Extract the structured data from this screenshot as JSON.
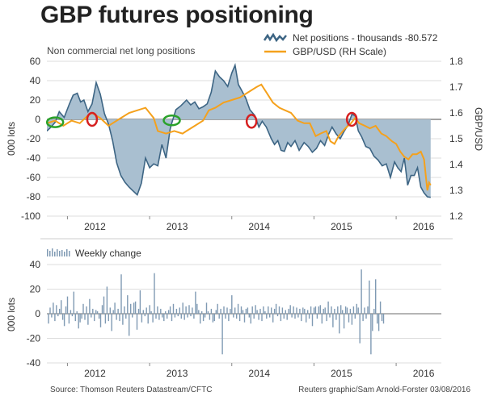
{
  "title": "GBP futures positioning",
  "footer": {
    "source": "Source: Thomson Reuters Datastream/CFTC",
    "credit": "Reuters graphic/Sam Arnold-Forster 03/08/2016"
  },
  "colors": {
    "net_area": "#a9bfd0",
    "net_line": "#3d6584",
    "gbp_line": "#f5a11c",
    "bars": "#7f9ab3",
    "zero_line": "#6b6b6b",
    "grid": "#dddddd",
    "green_marker": "#2aa22a",
    "red_marker": "#d62020",
    "divider": "#cccccc"
  },
  "chart_data": [
    {
      "type": "area",
      "subtitle": "Non commercial net long positions",
      "ylabel_left": "000 lots",
      "ylabel_right": "GBP/USD",
      "ylim_left": [
        -100,
        60
      ],
      "yticks_left": [
        -100,
        -80,
        -60,
        -40,
        -20,
        0,
        20,
        40,
        60
      ],
      "ylim_right": [
        1.2,
        1.8
      ],
      "yticks_right": [
        1.2,
        1.3,
        1.4,
        1.5,
        1.6,
        1.7,
        1.8
      ],
      "xlim": [
        2011.75,
        2016.55
      ],
      "xticks": [
        2012,
        2013,
        2014,
        2015,
        2016
      ],
      "legend": {
        "net": "Net positions - thousands -80.572",
        "gbp": "GBP/USD (RH Scale)"
      },
      "series": [
        {
          "name": "Net positions - thousands -80.572",
          "axis": "left",
          "points": [
            [
              2011.75,
              -12
            ],
            [
              2011.8,
              -8
            ],
            [
              2011.85,
              -3
            ],
            [
              2011.9,
              8
            ],
            [
              2011.96,
              2
            ],
            [
              2012.02,
              15
            ],
            [
              2012.07,
              25
            ],
            [
              2012.12,
              27
            ],
            [
              2012.16,
              18
            ],
            [
              2012.2,
              20
            ],
            [
              2012.25,
              8
            ],
            [
              2012.3,
              16
            ],
            [
              2012.35,
              38
            ],
            [
              2012.4,
              26
            ],
            [
              2012.45,
              6
            ],
            [
              2012.5,
              -5
            ],
            [
              2012.55,
              -22
            ],
            [
              2012.6,
              -45
            ],
            [
              2012.65,
              -58
            ],
            [
              2012.7,
              -65
            ],
            [
              2012.75,
              -70
            ],
            [
              2012.8,
              -74
            ],
            [
              2012.85,
              -78
            ],
            [
              2012.9,
              -66
            ],
            [
              2012.95,
              -40
            ],
            [
              2013.0,
              -50
            ],
            [
              2013.05,
              -46
            ],
            [
              2013.1,
              -48
            ],
            [
              2013.15,
              -26
            ],
            [
              2013.2,
              -40
            ],
            [
              2013.25,
              -10
            ],
            [
              2013.28,
              -1
            ],
            [
              2013.32,
              10
            ],
            [
              2013.38,
              14
            ],
            [
              2013.45,
              20
            ],
            [
              2013.5,
              15
            ],
            [
              2013.55,
              18
            ],
            [
              2013.6,
              11
            ],
            [
              2013.65,
              13
            ],
            [
              2013.7,
              16
            ],
            [
              2013.75,
              28
            ],
            [
              2013.8,
              50
            ],
            [
              2013.85,
              44
            ],
            [
              2013.9,
              40
            ],
            [
              2013.95,
              34
            ],
            [
              2014.0,
              48
            ],
            [
              2014.04,
              56
            ],
            [
              2014.08,
              36
            ],
            [
              2014.12,
              30
            ],
            [
              2014.17,
              22
            ],
            [
              2014.22,
              10
            ],
            [
              2014.28,
              4
            ],
            [
              2014.33,
              -8
            ],
            [
              2014.37,
              -2
            ],
            [
              2014.42,
              -8
            ],
            [
              2014.48,
              -20
            ],
            [
              2014.52,
              -26
            ],
            [
              2014.56,
              -22
            ],
            [
              2014.6,
              -32
            ],
            [
              2014.64,
              -33
            ],
            [
              2014.68,
              -24
            ],
            [
              2014.72,
              -28
            ],
            [
              2014.77,
              -22
            ],
            [
              2014.82,
              -32
            ],
            [
              2014.88,
              -24
            ],
            [
              2014.93,
              -28
            ],
            [
              2014.98,
              -34
            ],
            [
              2015.03,
              -30
            ],
            [
              2015.08,
              -22
            ],
            [
              2015.13,
              -27
            ],
            [
              2015.18,
              -15
            ],
            [
              2015.22,
              -8
            ],
            [
              2015.27,
              -15
            ],
            [
              2015.32,
              -20
            ],
            [
              2015.37,
              -12
            ],
            [
              2015.42,
              -5
            ],
            [
              2015.46,
              5
            ],
            [
              2015.5,
              4
            ],
            [
              2015.54,
              -12
            ],
            [
              2015.58,
              -18
            ],
            [
              2015.63,
              -28
            ],
            [
              2015.68,
              -30
            ],
            [
              2015.73,
              -38
            ],
            [
              2015.78,
              -42
            ],
            [
              2015.83,
              -48
            ],
            [
              2015.88,
              -46
            ],
            [
              2015.93,
              -60
            ],
            [
              2015.98,
              -44
            ],
            [
              2016.02,
              -50
            ],
            [
              2016.06,
              -54
            ],
            [
              2016.1,
              -40
            ],
            [
              2016.14,
              -68
            ],
            [
              2016.18,
              -58
            ],
            [
              2016.22,
              -58
            ],
            [
              2016.26,
              -50
            ],
            [
              2016.3,
              -70
            ],
            [
              2016.34,
              -76
            ],
            [
              2016.38,
              -80
            ],
            [
              2016.42,
              -80.572
            ]
          ]
        },
        {
          "name": "GBP/USD (RH Scale)",
          "axis": "right",
          "points": [
            [
              2011.75,
              1.56
            ],
            [
              2011.85,
              1.57
            ],
            [
              2011.95,
              1.55
            ],
            [
              2012.05,
              1.57
            ],
            [
              2012.15,
              1.56
            ],
            [
              2012.25,
              1.59
            ],
            [
              2012.3,
              1.6
            ],
            [
              2012.4,
              1.58
            ],
            [
              2012.5,
              1.55
            ],
            [
              2012.55,
              1.56
            ],
            [
              2012.65,
              1.58
            ],
            [
              2012.75,
              1.6
            ],
            [
              2012.85,
              1.61
            ],
            [
              2012.95,
              1.62
            ],
            [
              2013.05,
              1.58
            ],
            [
              2013.1,
              1.53
            ],
            [
              2013.2,
              1.52
            ],
            [
              2013.3,
              1.53
            ],
            [
              2013.4,
              1.52
            ],
            [
              2013.45,
              1.53
            ],
            [
              2013.55,
              1.55
            ],
            [
              2013.65,
              1.57
            ],
            [
              2013.72,
              1.61
            ],
            [
              2013.8,
              1.62
            ],
            [
              2013.9,
              1.64
            ],
            [
              2014.0,
              1.65
            ],
            [
              2014.1,
              1.66
            ],
            [
              2014.2,
              1.68
            ],
            [
              2014.3,
              1.7
            ],
            [
              2014.36,
              1.71
            ],
            [
              2014.42,
              1.68
            ],
            [
              2014.5,
              1.64
            ],
            [
              2014.58,
              1.62
            ],
            [
              2014.65,
              1.61
            ],
            [
              2014.72,
              1.6
            ],
            [
              2014.8,
              1.57
            ],
            [
              2014.88,
              1.56
            ],
            [
              2014.95,
              1.56
            ],
            [
              2015.02,
              1.51
            ],
            [
              2015.08,
              1.52
            ],
            [
              2015.15,
              1.53
            ],
            [
              2015.2,
              1.49
            ],
            [
              2015.25,
              1.48
            ],
            [
              2015.3,
              1.51
            ],
            [
              2015.38,
              1.54
            ],
            [
              2015.45,
              1.56
            ],
            [
              2015.5,
              1.58
            ],
            [
              2015.55,
              1.56
            ],
            [
              2015.62,
              1.55
            ],
            [
              2015.68,
              1.54
            ],
            [
              2015.75,
              1.55
            ],
            [
              2015.82,
              1.52
            ],
            [
              2015.88,
              1.51
            ],
            [
              2015.95,
              1.49
            ],
            [
              2016.0,
              1.48
            ],
            [
              2016.05,
              1.45
            ],
            [
              2016.1,
              1.43
            ],
            [
              2016.15,
              1.42
            ],
            [
              2016.2,
              1.44
            ],
            [
              2016.25,
              1.44
            ],
            [
              2016.3,
              1.45
            ],
            [
              2016.34,
              1.42
            ],
            [
              2016.38,
              1.3
            ],
            [
              2016.4,
              1.33
            ],
            [
              2016.42,
              1.32
            ]
          ]
        }
      ],
      "markers": [
        {
          "x": 2011.85,
          "y": -3,
          "color": "green"
        },
        {
          "x": 2012.3,
          "y": 0,
          "color": "red"
        },
        {
          "x": 2013.27,
          "y": -1,
          "color": "green"
        },
        {
          "x": 2014.24,
          "y": -2,
          "color": "red"
        },
        {
          "x": 2015.46,
          "y": 0,
          "color": "red"
        }
      ]
    },
    {
      "type": "bar",
      "legend": "Weekly change",
      "ylabel": "000 lots",
      "ylim": [
        -40,
        40
      ],
      "yticks": [
        -40,
        -20,
        0,
        20,
        40
      ],
      "xlim": [
        2011.75,
        2016.55
      ],
      "xticks": [
        2012,
        2013,
        2014,
        2015,
        2016
      ],
      "bar_start": 2011.77,
      "bar_step": 0.01923,
      "values": [
        -8,
        5,
        -3,
        9,
        -6,
        7,
        -2,
        4,
        11,
        -5,
        -10,
        6,
        14,
        -8,
        3,
        -2,
        18,
        -6,
        2,
        -12,
        -7,
        -4,
        8,
        -5,
        6,
        -9,
        12,
        -3,
        4,
        -6,
        3,
        2,
        -4,
        -11,
        7,
        14,
        -8,
        22,
        -6,
        5,
        -14,
        3,
        9,
        -5,
        4,
        -6,
        32,
        -9,
        6,
        -4,
        15,
        -18,
        8,
        -3,
        9,
        10,
        -13,
        4,
        19,
        -7,
        3,
        -2,
        5,
        -8,
        7,
        2,
        -7,
        33,
        -4,
        6,
        -5,
        4,
        -3,
        -6,
        2,
        -4,
        3,
        6,
        -6,
        8,
        -3,
        4,
        -2,
        5,
        -4,
        9,
        -5,
        6,
        -3,
        7,
        -2,
        5,
        -4,
        18,
        8,
        3,
        -8,
        2,
        -6,
        -3,
        9,
        2,
        -5,
        4,
        -7,
        -6,
        3,
        8,
        -4,
        4,
        -33,
        6,
        -4,
        5,
        -6,
        4,
        15,
        -3,
        5,
        -4,
        8,
        -6,
        6,
        3,
        -7,
        4,
        5,
        -3,
        -8,
        6,
        -4,
        7,
        3,
        -5,
        4,
        -6,
        6,
        2,
        -4,
        6,
        -3,
        5,
        -7,
        4,
        8,
        -2,
        6,
        -6,
        5,
        -4,
        3,
        -5,
        4,
        7,
        -3,
        6,
        -4,
        5,
        -3,
        4,
        -6,
        5,
        4,
        -7,
        3,
        -4,
        6,
        -10,
        5,
        6,
        -4,
        6,
        7,
        -8,
        4,
        5,
        -6,
        10,
        -3,
        6,
        -11,
        4,
        -5,
        6,
        -16,
        7,
        3,
        -12,
        6,
        5,
        -7,
        4,
        -9,
        6,
        -4,
        8,
        5,
        -24,
        36,
        -6,
        5,
        -4,
        6,
        27,
        -33,
        -14,
        4,
        28,
        -8,
        -14,
        10,
        -6,
        -8
      ]
    }
  ]
}
